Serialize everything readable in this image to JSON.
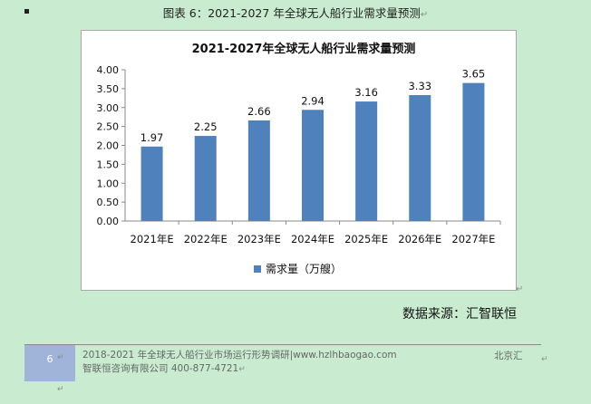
{
  "document": {
    "caption": "图表 6：2021-2027 年全球无人船行业需求量预测",
    "source": "数据来源：汇智联恒",
    "footer": {
      "page_number": "6",
      "text_line1": "2018-2021 年全球无人船行业市场运行形势调研|www.hzlhbaogao.com",
      "text_line2": "智联恒咨询有限公司  400-877-4721",
      "city": "北京汇"
    }
  },
  "chart_data": {
    "type": "bar",
    "title": "2021-2027年全球无人船行业需求量预测",
    "categories": [
      "2021年E",
      "2022年E",
      "2023年E",
      "2024年E",
      "2025年E",
      "2026年E",
      "2027年E"
    ],
    "series": [
      {
        "name": "需求量（万艘）",
        "values": [
          1.97,
          2.25,
          2.66,
          2.94,
          3.16,
          3.33,
          3.65
        ]
      }
    ],
    "data_labels": [
      "1.97",
      "2.25",
      "2.66",
      "2.94",
      "3.16",
      "3.33",
      "3.65"
    ],
    "ylim": [
      0,
      4
    ],
    "yticks": [
      "0.00",
      "0.50",
      "1.00",
      "1.50",
      "2.00",
      "2.50",
      "3.00",
      "3.50",
      "4.00"
    ],
    "bar_color": "#4f81bd",
    "legend_position": "bottom",
    "grid": false
  }
}
